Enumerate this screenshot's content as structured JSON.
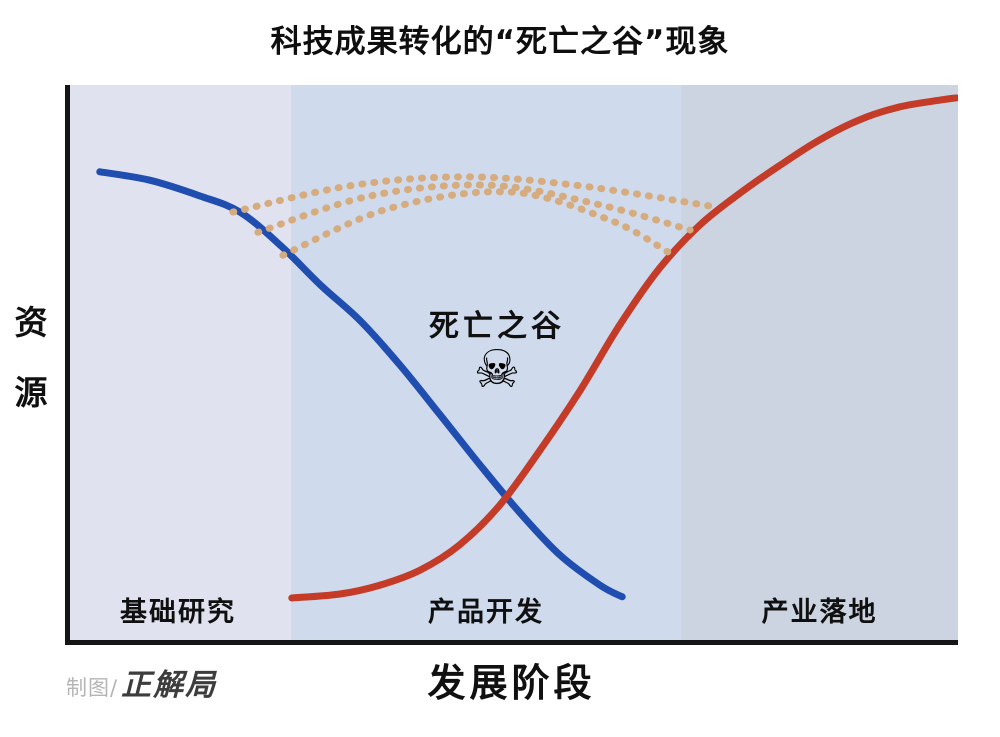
{
  "title": "科技成果转化的“死亡之谷”现象",
  "axes": {
    "ylabel": "资源",
    "xlabel": "发展阶段"
  },
  "credit": {
    "prefix": "制图/",
    "name": "正解局"
  },
  "annotation": {
    "label": "死亡之谷",
    "icon": "skull-crossbones-icon",
    "glyph": "☠"
  },
  "colors": {
    "axis": "#151515",
    "blue_curve": "#1f4db0",
    "red_curve": "#c43b28",
    "bridge_dotted": "#d6ab7e",
    "region_basic": "#e0e3ef",
    "region_product": "#cfdaec",
    "region_industry": "#ccd3e1"
  },
  "regions": [
    {
      "label": "基础研究",
      "start": 0.0,
      "end": 0.253,
      "fill": "#e0e3ef"
    },
    {
      "label": "产品开发",
      "start": 0.253,
      "end": 0.69,
      "fill": "#cfdaec"
    },
    {
      "label": "产业落地",
      "start": 0.69,
      "end": 1.0,
      "fill": "#ccd3e1"
    }
  ],
  "chart_data": {
    "type": "line",
    "title": "科技成果转化的“死亡之谷”现象",
    "xlabel": "发展阶段",
    "ylabel": "资源",
    "x_categories": [
      "基础研究",
      "产品开发",
      "产业落地"
    ],
    "annotations": [
      "死亡之谷"
    ],
    "axis_numeric": false,
    "units": "normalized 0-1 (x = progress along development stages, y = resource level)",
    "legend": "none",
    "grid": false,
    "series": [
      {
        "name": "blue-declining-curve",
        "color": "#1f4db0",
        "line_style": "solid",
        "width": 7,
        "points": [
          [
            0.039,
            0.845
          ],
          [
            0.095,
            0.83
          ],
          [
            0.151,
            0.802
          ],
          [
            0.196,
            0.773
          ],
          [
            0.241,
            0.714
          ],
          [
            0.286,
            0.643
          ],
          [
            0.33,
            0.58
          ],
          [
            0.375,
            0.5
          ],
          [
            0.42,
            0.411
          ],
          [
            0.465,
            0.321
          ],
          [
            0.509,
            0.237
          ],
          [
            0.554,
            0.161
          ],
          [
            0.599,
            0.107
          ],
          [
            0.624,
            0.086
          ]
        ]
      },
      {
        "name": "red-rising-curve",
        "color": "#c43b28",
        "line_style": "solid",
        "width": 7,
        "points": [
          [
            0.254,
            0.084
          ],
          [
            0.308,
            0.091
          ],
          [
            0.353,
            0.107
          ],
          [
            0.398,
            0.134
          ],
          [
            0.442,
            0.179
          ],
          [
            0.487,
            0.25
          ],
          [
            0.532,
            0.348
          ],
          [
            0.577,
            0.455
          ],
          [
            0.621,
            0.571
          ],
          [
            0.666,
            0.673
          ],
          [
            0.711,
            0.75
          ],
          [
            0.756,
            0.807
          ],
          [
            0.801,
            0.857
          ],
          [
            0.845,
            0.902
          ],
          [
            0.89,
            0.938
          ],
          [
            0.935,
            0.961
          ],
          [
            0.98,
            0.973
          ],
          [
            0.998,
            0.977
          ]
        ]
      },
      {
        "name": "dotted-bridge-arc-1",
        "color": "#d6ab7e",
        "line_style": "dotted",
        "width": 7,
        "points": [
          [
            0.188,
            0.773
          ],
          [
            0.319,
            0.82
          ],
          [
            0.448,
            0.836
          ],
          [
            0.577,
            0.82
          ],
          [
            0.722,
            0.784
          ]
        ]
      },
      {
        "name": "dotted-bridge-arc-2",
        "color": "#d6ab7e",
        "line_style": "dotted",
        "width": 7,
        "points": [
          [
            0.216,
            0.737
          ],
          [
            0.342,
            0.802
          ],
          [
            0.476,
            0.821
          ],
          [
            0.599,
            0.786
          ],
          [
            0.7,
            0.741
          ]
        ]
      },
      {
        "name": "dotted-bridge-arc-3",
        "color": "#d6ab7e",
        "line_style": "dotted",
        "width": 7,
        "points": [
          [
            0.244,
            0.696
          ],
          [
            0.364,
            0.78
          ],
          [
            0.498,
            0.809
          ],
          [
            0.61,
            0.759
          ],
          [
            0.675,
            0.702
          ]
        ]
      }
    ]
  }
}
